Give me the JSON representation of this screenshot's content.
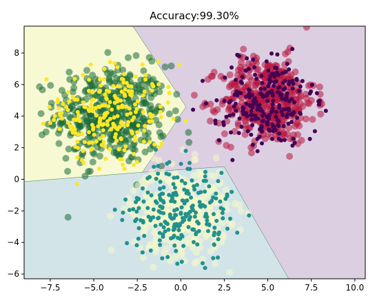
{
  "chart_data": {
    "type": "scatter",
    "title": "Accuracy:99.30%",
    "xlabel": "",
    "ylabel": "",
    "xlim": [
      -9.0,
      10.6
    ],
    "ylim": [
      -6.3,
      9.7
    ],
    "x_ticks": [
      -7.5,
      -5.0,
      -2.5,
      0.0,
      2.5,
      5.0,
      7.5,
      10.0
    ],
    "x_tick_labels": [
      "−7.5",
      "−5.0",
      "−2.5",
      "0.0",
      "2.5",
      "5.0",
      "7.5",
      "10.0"
    ],
    "y_ticks": [
      -6,
      -4,
      -2,
      0,
      2,
      4,
      6,
      8
    ],
    "y_tick_labels": [
      "−6",
      "−4",
      "−2",
      "0",
      "2",
      "4",
      "6",
      "8"
    ],
    "grid": false,
    "legend": "none",
    "decision_regions": [
      {
        "class": "left-upper",
        "color": "#f7f9d2",
        "polygon": [
          [
            -9.0,
            9.7
          ],
          [
            -2.75,
            9.7
          ],
          [
            0.3,
            4.6
          ],
          [
            -2.2,
            0.45
          ],
          [
            -9.0,
            -0.15
          ]
        ]
      },
      {
        "class": "bottom",
        "color": "#d2e4e8",
        "polygon": [
          [
            -9.0,
            -0.15
          ],
          [
            -2.2,
            0.45
          ],
          [
            2.5,
            0.8
          ],
          [
            6.2,
            -6.3
          ],
          [
            -9.0,
            -6.3
          ]
        ]
      },
      {
        "class": "right",
        "color": "#dccfe2",
        "polygon": [
          [
            -2.75,
            9.7
          ],
          [
            10.6,
            9.7
          ],
          [
            10.6,
            -6.3
          ],
          [
            6.2,
            -6.3
          ],
          [
            2.5,
            0.8
          ],
          [
            -2.2,
            0.45
          ],
          [
            0.3,
            4.6
          ]
        ]
      }
    ],
    "clusters": [
      {
        "center": [
          -4.0,
          4.1
        ],
        "spread": [
          1.6,
          1.55
        ],
        "true_color": "#1a6c38",
        "pred_color": "#fde725",
        "true_radius": 5,
        "pred_radius": 3,
        "n": 460
      },
      {
        "center": [
          5.0,
          5.0
        ],
        "spread": [
          1.35,
          1.35
        ],
        "true_color": "#b8163f",
        "pred_color": "#440154",
        "true_radius": 5,
        "pred_radius": 3,
        "n": 460
      },
      {
        "center": [
          0.0,
          -2.0
        ],
        "spread": [
          1.35,
          1.35
        ],
        "true_color": "#f5f8c8",
        "pred_color": "#21918c",
        "true_radius": 5,
        "pred_radius": 3,
        "n": 460
      }
    ]
  }
}
